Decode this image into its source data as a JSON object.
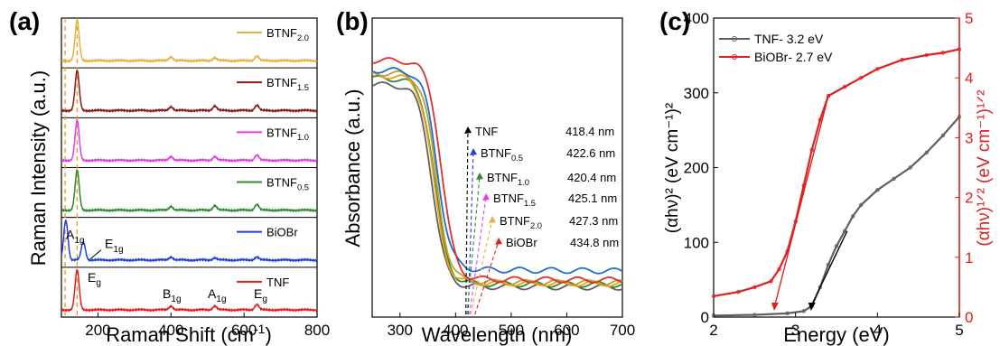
{
  "panels": [
    {
      "label": "(a)"
    },
    {
      "label": "(b)"
    },
    {
      "label": "(c)"
    }
  ],
  "chart_data": [
    {
      "type": "line",
      "panel": "(a)",
      "xlabel": "Raman Shift (cm",
      "xlabel_sup": "-1",
      "xlabel_close": ")",
      "ylabel": "Raman Intensity (a.u.)",
      "xlim": [
        100,
        800
      ],
      "xticks": [
        200,
        400,
        600,
        800
      ],
      "series": [
        {
          "name": "BTNF",
          "sub": "2.0",
          "color": "#E8B040",
          "peaks": [
            [
              143,
              1.0
            ],
            [
              400,
              0.1
            ],
            [
              520,
              0.08
            ],
            [
              635,
              0.12
            ]
          ]
        },
        {
          "name": "BTNF",
          "sub": "1.5",
          "color": "#8B1A1A",
          "peaks": [
            [
              143,
              1.0
            ],
            [
              400,
              0.1
            ],
            [
              520,
              0.12
            ],
            [
              635,
              0.14
            ]
          ]
        },
        {
          "name": "BTNF",
          "sub": "1.0",
          "color": "#E83BE8",
          "peaks": [
            [
              143,
              1.0
            ],
            [
              400,
              0.1
            ],
            [
              520,
              0.1
            ],
            [
              635,
              0.14
            ]
          ]
        },
        {
          "name": "BTNF",
          "sub": "0.5",
          "color": "#2E8B2E",
          "peaks": [
            [
              143,
              1.0
            ],
            [
              400,
              0.1
            ],
            [
              520,
              0.12
            ],
            [
              635,
              0.15
            ]
          ]
        },
        {
          "name": "BiOBr",
          "sub": "",
          "color": "#1F3FE0",
          "peaks": [
            [
              112,
              1.0
            ],
            [
              160,
              0.45
            ],
            [
              400,
              0.08
            ],
            [
              520,
              0.06
            ],
            [
              635,
              0.08
            ]
          ]
        },
        {
          "name": "TNF",
          "sub": "",
          "color": "#E02020",
          "peaks": [
            [
              143,
              1.0
            ],
            [
              400,
              0.1
            ],
            [
              520,
              0.1
            ],
            [
              635,
              0.14
            ]
          ]
        }
      ],
      "reference_lines": [
        110,
        143
      ],
      "annotations": [
        {
          "base": "A",
          "sub": "1g",
          "x": 112
        },
        {
          "base": "E",
          "sub": "1g",
          "x": 160
        },
        {
          "base": "E",
          "sub": "g",
          "x": 150
        },
        {
          "base": "B",
          "sub": "1g",
          "x": 400
        },
        {
          "base": "A",
          "sub": "1g",
          "x": 520
        },
        {
          "base": "E",
          "sub": "g",
          "x": 635
        }
      ]
    },
    {
      "type": "line",
      "panel": "(b)",
      "xlabel": "Wavelength (nm)",
      "ylabel": "Absorbance (a.u.)",
      "xlim": [
        250,
        700
      ],
      "xticks": [
        300,
        400,
        500,
        600,
        700
      ],
      "series": [
        {
          "name": "TNF",
          "sub": "",
          "edge_nm": 418.4,
          "edge_label": "418.4 nm",
          "color": "#606060"
        },
        {
          "name": "BTNF",
          "sub": "0.5",
          "edge_nm": 422.6,
          "edge_label": "422.6 nm",
          "color": "#2E8B2E"
        },
        {
          "name": "BTNF",
          "sub": "1.0",
          "edge_nm": 420.4,
          "edge_label": "420.4 nm",
          "color": "#E8A020"
        },
        {
          "name": "BTNF",
          "sub": "1.5",
          "edge_nm": 425.1,
          "edge_label": "425.1 nm",
          "color": "#C0A030"
        },
        {
          "name": "BTNF",
          "sub": "2.0",
          "edge_nm": 427.3,
          "edge_label": "427.3 nm",
          "color": "#1F6FD0"
        },
        {
          "name": "BiOBr",
          "sub": "",
          "edge_nm": 434.8,
          "edge_label": "434.8 nm",
          "color": "#E03030"
        }
      ],
      "label_colors": [
        "#000000",
        "#1F3FE0",
        "#2E8B2E",
        "#E83BE8",
        "#E8B040",
        "#E02020"
      ]
    },
    {
      "type": "line",
      "panel": "(c)",
      "xlabel": "Energy (eV)",
      "xlim": [
        2,
        5
      ],
      "xticks": [
        2,
        3,
        4,
        5
      ],
      "ylim_left": [
        0,
        400
      ],
      "yticks_left": [
        0,
        100,
        200,
        300,
        400
      ],
      "ylim_right": [
        0,
        5
      ],
      "yticks_right": [
        0,
        1,
        2,
        3,
        4,
        5
      ],
      "ylabel_left": "(αhν)² (eV cm⁻¹)²",
      "ylabel_right": "(αhν)¹ᐟ² (eV cm⁻¹)¹ᐟ²",
      "series": [
        {
          "name": "TNF- 3.2 eV",
          "color": "#606060",
          "axis": "left",
          "band_gap_eV": 3.2,
          "points": [
            [
              2.0,
              2
            ],
            [
              2.5,
              3
            ],
            [
              2.9,
              5
            ],
            [
              3.1,
              8
            ],
            [
              3.2,
              15
            ],
            [
              3.3,
              40
            ],
            [
              3.4,
              70
            ],
            [
              3.5,
              95
            ],
            [
              3.6,
              115
            ],
            [
              3.7,
              135
            ],
            [
              3.8,
              150
            ],
            [
              4.0,
              170
            ],
            [
              4.2,
              185
            ],
            [
              4.4,
              200
            ],
            [
              4.6,
              220
            ],
            [
              4.8,
              243
            ],
            [
              5.0,
              268
            ]
          ]
        },
        {
          "name": "BiOBr- 2.7 eV",
          "color": "#E02020",
          "axis": "right",
          "band_gap_eV": 2.7,
          "points": [
            [
              2.0,
              0.35
            ],
            [
              2.3,
              0.42
            ],
            [
              2.5,
              0.5
            ],
            [
              2.7,
              0.6
            ],
            [
              2.8,
              0.8
            ],
            [
              2.9,
              1.1
            ],
            [
              3.0,
              1.6
            ],
            [
              3.1,
              2.2
            ],
            [
              3.2,
              2.8
            ],
            [
              3.3,
              3.3
            ],
            [
              3.4,
              3.7
            ],
            [
              3.6,
              3.85
            ],
            [
              3.8,
              4.0
            ],
            [
              4.0,
              4.15
            ],
            [
              4.3,
              4.3
            ],
            [
              4.6,
              4.38
            ],
            [
              4.8,
              4.42
            ],
            [
              5.0,
              4.48
            ]
          ]
        }
      ],
      "fits": [
        {
          "color": "#000000",
          "from": [
            3.63,
            115
          ],
          "to": [
            3.2,
            0
          ]
        },
        {
          "color": "#E02020",
          "from": [
            3.4,
            3.7
          ],
          "to": [
            2.75,
            0
          ]
        }
      ]
    }
  ]
}
